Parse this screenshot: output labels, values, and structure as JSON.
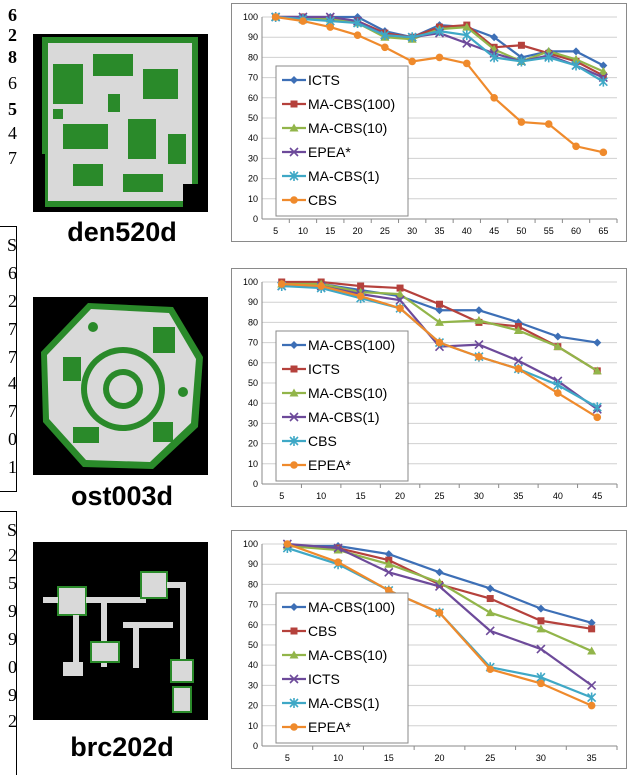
{
  "left_edge": {
    "fragments": [
      {
        "text": "6",
        "bold": true
      },
      {
        "text": "2",
        "bold": true
      },
      {
        "text": "8",
        "bold": true
      },
      {
        "text": "6",
        "bold": false
      },
      {
        "text": "5",
        "bold": true
      },
      {
        "text": "4",
        "bold": false
      },
      {
        "text": "7",
        "bold": false
      },
      {
        "text": "S",
        "bold": false
      },
      {
        "text": "6",
        "bold": false
      },
      {
        "text": "2",
        "bold": false
      },
      {
        "text": "7",
        "bold": false
      },
      {
        "text": "7",
        "bold": false
      },
      {
        "text": "4",
        "bold": false
      },
      {
        "text": "7",
        "bold": false
      },
      {
        "text": "0",
        "bold": false
      },
      {
        "text": "1",
        "bold": false
      },
      {
        "text": "S",
        "bold": false
      },
      {
        "text": "2",
        "bold": false
      },
      {
        "text": "5",
        "bold": false
      },
      {
        "text": "9",
        "bold": false
      },
      {
        "text": "9",
        "bold": false
      },
      {
        "text": "0",
        "bold": false
      },
      {
        "text": "9",
        "bold": false
      },
      {
        "text": "2",
        "bold": false
      }
    ]
  },
  "maps": [
    {
      "label": "den520d",
      "icon": "den520d-map-image"
    },
    {
      "label": "ost003d",
      "icon": "ost003d-map-image"
    },
    {
      "label": "brc202d",
      "icon": "brc202d-map-image"
    }
  ],
  "colors": {
    "blue": "#3d6fb6",
    "red": "#b5413c",
    "green": "#92b54a",
    "purple": "#6d4a9a",
    "cyan": "#3fa8c6",
    "orange": "#ef8a2c"
  },
  "chart_data": [
    {
      "type": "line",
      "map": "den520d",
      "x": [
        5,
        10,
        15,
        20,
        25,
        30,
        35,
        40,
        45,
        50,
        55,
        60,
        65
      ],
      "ylim": [
        0,
        100
      ],
      "yticks": [
        0,
        10,
        20,
        30,
        40,
        50,
        60,
        70,
        80,
        90,
        100
      ],
      "legend_placement": "left",
      "series": [
        {
          "name": "ICTS",
          "color": "#3d6fb6",
          "marker": "diamond",
          "values": [
            100,
            100,
            100,
            100,
            93,
            90,
            96,
            95,
            90,
            80,
            83,
            83,
            76
          ]
        },
        {
          "name": "MA-CBS(100)",
          "color": "#b5413c",
          "marker": "square",
          "values": [
            100,
            100,
            99,
            98,
            92,
            90,
            95,
            96,
            85,
            86,
            82,
            78,
            71
          ]
        },
        {
          "name": "MA-CBS(10)",
          "color": "#92b54a",
          "marker": "triangle",
          "values": [
            100,
            99,
            99,
            97,
            90,
            89,
            94,
            95,
            84,
            78,
            83,
            79,
            73
          ]
        },
        {
          "name": "EPEA*",
          "color": "#6d4a9a",
          "marker": "x",
          "values": [
            100,
            100,
            100,
            98,
            91,
            90,
            92,
            87,
            82,
            78,
            81,
            76,
            70
          ]
        },
        {
          "name": "MA-CBS(1)",
          "color": "#3fa8c6",
          "marker": "star",
          "values": [
            100,
            99,
            98,
            97,
            91,
            90,
            93,
            91,
            80,
            78,
            80,
            76,
            68
          ]
        },
        {
          "name": "CBS",
          "color": "#ef8a2c",
          "marker": "circle",
          "values": [
            100,
            98,
            95,
            91,
            85,
            78,
            80,
            77,
            60,
            48,
            47,
            36,
            33
          ]
        }
      ]
    },
    {
      "type": "line",
      "map": "ost003d",
      "x": [
        5,
        10,
        15,
        20,
        25,
        30,
        35,
        40,
        45
      ],
      "ylim": [
        0,
        100
      ],
      "yticks": [
        0,
        10,
        20,
        30,
        40,
        50,
        60,
        70,
        80,
        90,
        100
      ],
      "legend_placement": "left",
      "series": [
        {
          "name": "MA-CBS(100)",
          "color": "#3d6fb6",
          "marker": "diamond",
          "values": [
            99,
            99,
            96,
            93,
            86,
            86,
            80,
            73,
            70
          ]
        },
        {
          "name": "ICTS",
          "color": "#b5413c",
          "marker": "square",
          "values": [
            100,
            100,
            98,
            97,
            89,
            80,
            78,
            68,
            56
          ]
        },
        {
          "name": "MA-CBS(10)",
          "color": "#92b54a",
          "marker": "triangle",
          "values": [
            99,
            99,
            95,
            94,
            80,
            81,
            76,
            68,
            56
          ]
        },
        {
          "name": "MA-CBS(1)",
          "color": "#6d4a9a",
          "marker": "x",
          "values": [
            98,
            98,
            94,
            91,
            68,
            69,
            61,
            51,
            37
          ]
        },
        {
          "name": "CBS",
          "color": "#3fa8c6",
          "marker": "star",
          "values": [
            98,
            97,
            92,
            87,
            70,
            63,
            57,
            49,
            38
          ]
        },
        {
          "name": "EPEA*",
          "color": "#ef8a2c",
          "marker": "circle",
          "values": [
            99,
            98,
            93,
            87,
            70,
            63,
            57,
            45,
            33
          ]
        }
      ]
    },
    {
      "type": "line",
      "map": "brc202d",
      "x": [
        5,
        10,
        15,
        20,
        25,
        30,
        35
      ],
      "ylim": [
        0,
        100
      ],
      "yticks": [
        0,
        10,
        20,
        30,
        40,
        50,
        60,
        70,
        80,
        90,
        100
      ],
      "legend_placement": "left",
      "series": [
        {
          "name": "MA-CBS(100)",
          "color": "#3d6fb6",
          "marker": "diamond",
          "values": [
            99,
            99,
            95,
            86,
            78,
            68,
            61
          ]
        },
        {
          "name": "CBS",
          "color": "#b5413c",
          "marker": "square",
          "values": [
            99,
            98,
            92,
            80,
            73,
            62,
            58
          ]
        },
        {
          "name": "MA-CBS(10)",
          "color": "#92b54a",
          "marker": "triangle",
          "values": [
            99,
            97,
            90,
            81,
            66,
            58,
            47
          ]
        },
        {
          "name": "ICTS",
          "color": "#6d4a9a",
          "marker": "x",
          "values": [
            100,
            98,
            86,
            79,
            57,
            48,
            30
          ]
        },
        {
          "name": "MA-CBS(1)",
          "color": "#3fa8c6",
          "marker": "star",
          "values": [
            98,
            90,
            77,
            66,
            39,
            34,
            24
          ]
        },
        {
          "name": "EPEA*",
          "color": "#ef8a2c",
          "marker": "circle",
          "values": [
            100,
            91,
            77,
            66,
            38,
            31,
            20
          ]
        }
      ]
    }
  ]
}
